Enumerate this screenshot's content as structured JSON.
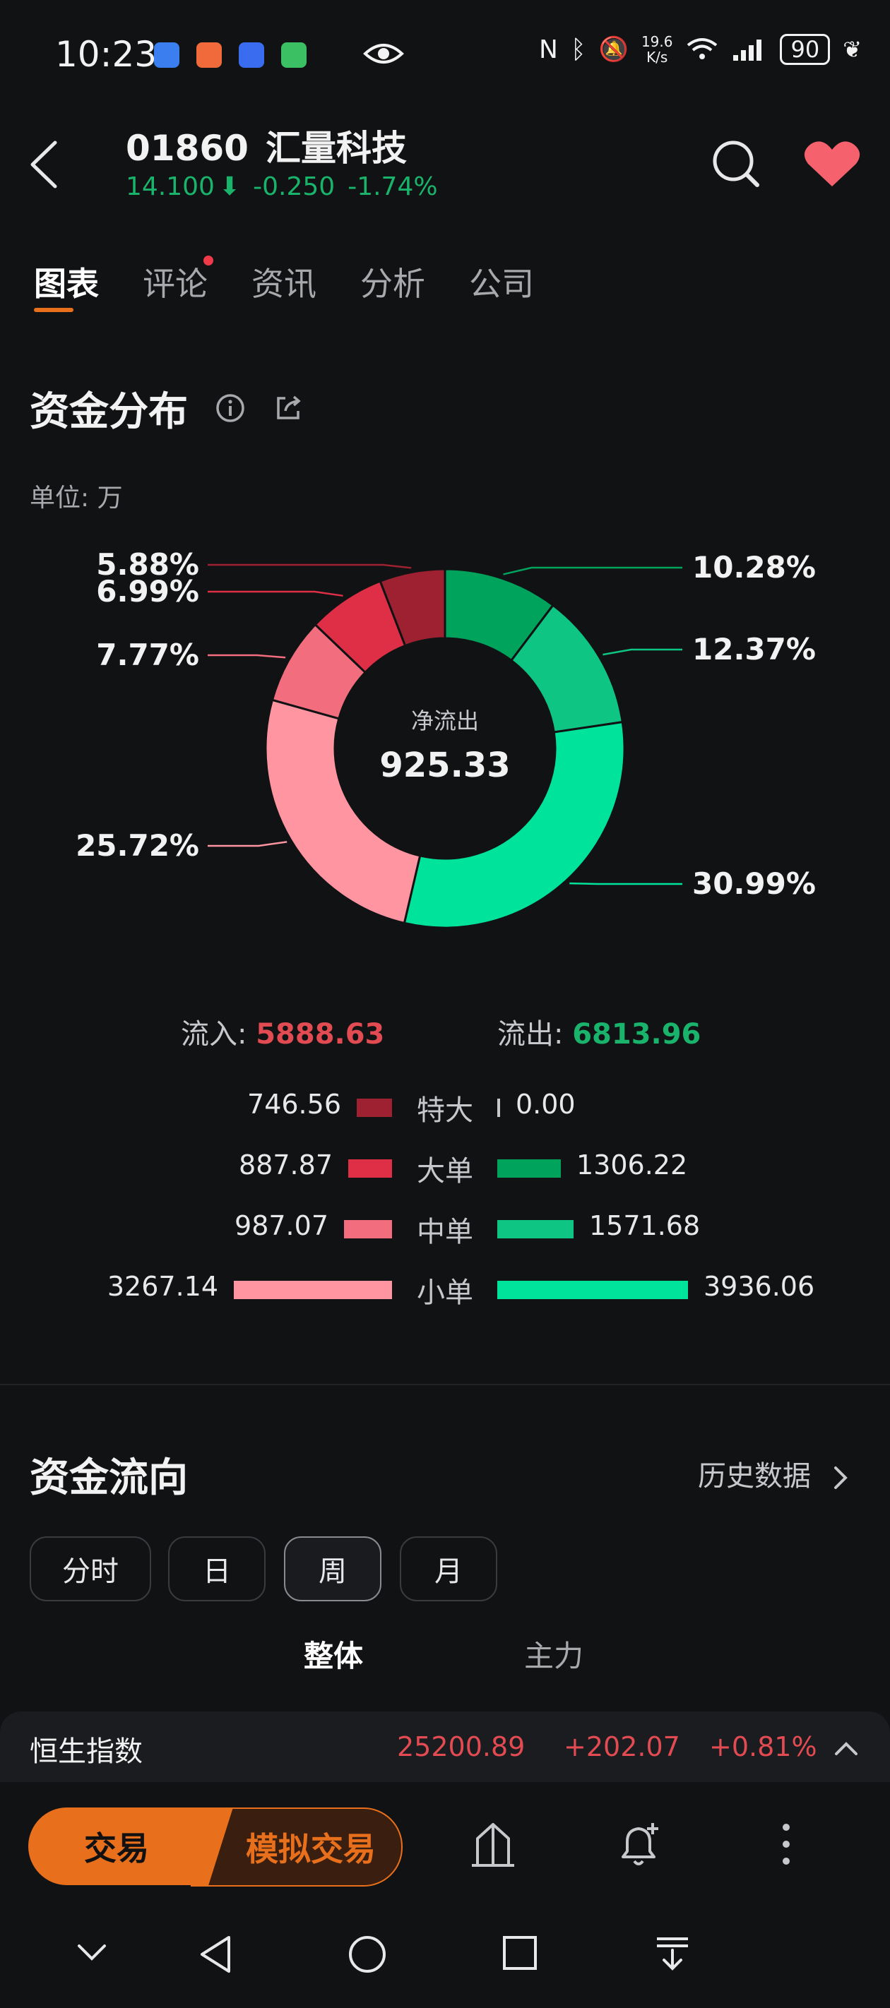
{
  "status_bar": {
    "time": "10:23",
    "net_speed_top": "19.6",
    "net_speed_bottom": "K/s",
    "battery": "90",
    "icons": [
      "app-icon-blue",
      "app-icon-orange",
      "app-icon-blue2",
      "app-icon-green",
      "eye-icon",
      "nfc-icon",
      "bluetooth-icon",
      "mute-icon",
      "wifi-icon",
      "signal-icon",
      "leaf-icon"
    ]
  },
  "header": {
    "code": "01860",
    "name": "汇量科技",
    "price": "14.100",
    "change": "-0.250",
    "change_pct": "-1.74%",
    "arrow": "⬇"
  },
  "tabs": [
    {
      "label": "图表",
      "active": true
    },
    {
      "label": "评论",
      "active": false,
      "dot": true
    },
    {
      "label": "资讯",
      "active": false
    },
    {
      "label": "分析",
      "active": false
    },
    {
      "label": "公司",
      "active": false
    }
  ],
  "distribution": {
    "title": "资金分布",
    "unit": "单位: 万",
    "center_label": "净流出",
    "center_value": "925.33",
    "inflow_label": "流入:",
    "inflow_value": "5888.63",
    "outflow_label": "流出:",
    "outflow_value": "6813.96",
    "rows": [
      {
        "in": "746.56",
        "label": "特大",
        "out": "0.00"
      },
      {
        "in": "887.87",
        "label": "大单",
        "out": "1306.22"
      },
      {
        "in": "987.07",
        "label": "中单",
        "out": "1571.68"
      },
      {
        "in": "3267.14",
        "label": "小单",
        "out": "3936.06"
      }
    ]
  },
  "chart_data": {
    "type": "pie",
    "labels": [
      "流出-大单",
      "流出-中单",
      "流出-小单",
      "流入-小单",
      "流入-中单",
      "流入-大单",
      "流入-特大"
    ],
    "values": [
      10.28,
      12.37,
      30.99,
      25.72,
      7.77,
      6.99,
      5.88
    ],
    "value_labels": [
      "10.28%",
      "12.37%",
      "30.99%",
      "25.72%",
      "7.77%",
      "6.99%",
      "5.88%"
    ],
    "colors": [
      "#00a35c",
      "#0fc584",
      "#00e39a",
      "#ff95a1",
      "#f26e7e",
      "#df2f47",
      "#9d2130"
    ],
    "donut": true
  },
  "flow": {
    "title": "资金流向",
    "history": "历史数据",
    "periods": [
      {
        "label": "分时",
        "active": false
      },
      {
        "label": "日",
        "active": false
      },
      {
        "label": "周",
        "active": true
      },
      {
        "label": "月",
        "active": false
      }
    ],
    "sub_tabs": [
      {
        "label": "整体",
        "active": true
      },
      {
        "label": "主力",
        "active": false
      }
    ]
  },
  "index_bar": {
    "name": "恒生指数",
    "value": "25200.89",
    "change": "+202.07",
    "change_pct": "+0.81%"
  },
  "toolbar": {
    "trade": "交易",
    "sim_trade": "模拟交易"
  },
  "colors": {
    "accent": "#e8701c",
    "up_red": "#e24b52",
    "down_green": "#19b36b",
    "background": "#111214"
  }
}
